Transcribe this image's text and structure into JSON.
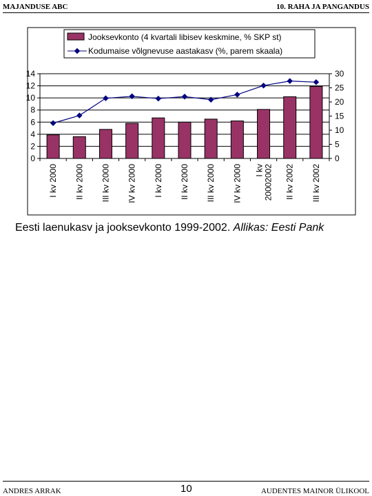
{
  "header": {
    "left": "MAJANDUSE ABC",
    "right": "10. RAHA JA PANGANDUS"
  },
  "footer": {
    "left": "ANDRES ARRAK",
    "page": "10",
    "right": "AUDENTES MAINOR ÜLIKOOL"
  },
  "caption": {
    "text": "Eesti laenukasv ja jooksevkonto 1999-2002. ",
    "source": "Allikas: Eesti Pank"
  },
  "colors": {
    "bar": "#993366",
    "line": "#000080"
  },
  "chart_data": {
    "type": "bar",
    "categories": [
      "I kv 2000",
      "II  kv 2000",
      "III kv 2000",
      "IV kv 2000",
      "I kv 2000",
      "II kv 2000",
      "III kv 2000",
      "IV kv 2000",
      "I kv 20002002",
      "II kv 2002",
      "III kv 2002"
    ],
    "series": [
      {
        "name": "Jooksevkonto (4 kvartali libisev keskmine, % SKP st)",
        "type": "bar",
        "axis": "left",
        "values": [
          3.9,
          3.6,
          4.8,
          5.8,
          6.7,
          6.0,
          6.5,
          6.2,
          8.1,
          10.2,
          11.9
        ]
      },
      {
        "name": "Kodumaise võlgnevuse aastakasv (%, parem skaala)",
        "type": "line",
        "axis": "right",
        "values": [
          12.5,
          15.2,
          21.3,
          22.0,
          21.2,
          21.9,
          20.8,
          22.6,
          25.8,
          27.4,
          27.0
        ]
      }
    ],
    "ylim_left": [
      0,
      14
    ],
    "yticks_left": [
      0,
      2,
      4,
      6,
      8,
      10,
      12,
      14
    ],
    "ylim_right": [
      0,
      30
    ],
    "yticks_right": [
      0,
      5,
      10,
      15,
      20,
      25,
      30
    ],
    "grid": true,
    "legend": "top"
  }
}
